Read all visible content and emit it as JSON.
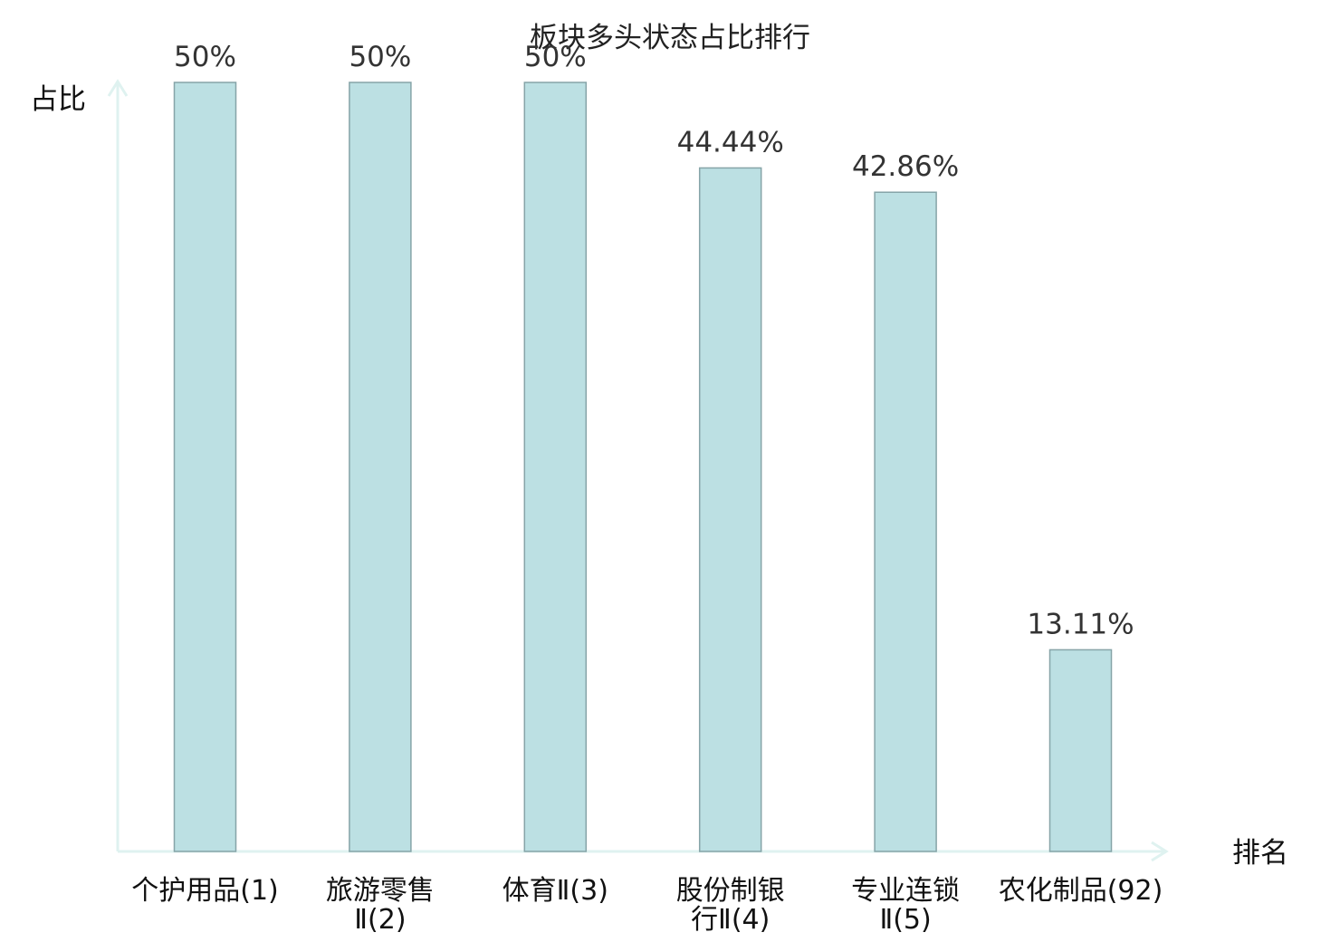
{
  "chart_data": {
    "type": "bar",
    "title": "板块多头状态占比排行",
    "xlabel": "排名",
    "ylabel": "占比",
    "categories": [
      [
        "个护用品(1)"
      ],
      [
        "旅游零售",
        "Ⅱ(2)"
      ],
      [
        "体育Ⅱ(3)"
      ],
      [
        "股份制银",
        "行Ⅱ(4)"
      ],
      [
        "专业连锁",
        "Ⅱ(5)"
      ],
      [
        "农化制品(92)"
      ]
    ],
    "values": [
      50,
      50,
      50,
      44.44,
      42.86,
      13.11
    ],
    "value_labels": [
      "50%",
      "50%",
      "50%",
      "44.44%",
      "42.86%",
      "13.11%"
    ],
    "highlight_index": 5,
    "ylim": [
      0,
      50
    ],
    "grid": false,
    "colors": {
      "bar_fill": "#bce0e3",
      "bar_stroke": "#86a4a8",
      "axis": "#dff2f0",
      "highlight_text": "#e60012",
      "text": "#111111",
      "value_text": "#333333"
    }
  }
}
